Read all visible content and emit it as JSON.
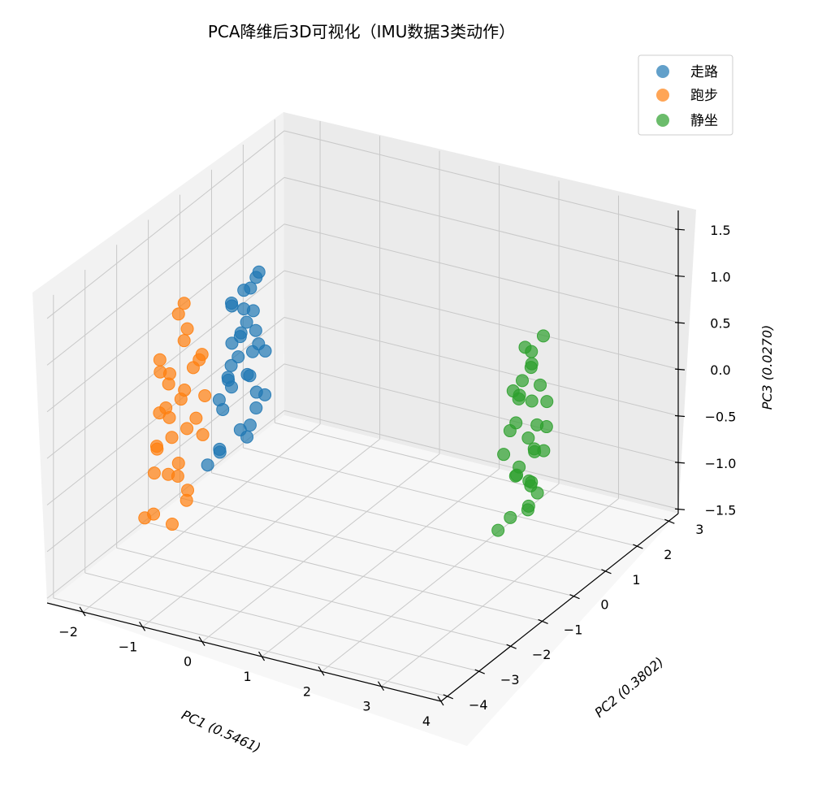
{
  "chart_data": {
    "type": "scatter",
    "projection": "3d",
    "title": "PCA降维后3D可视化（IMU数据3类动作）",
    "xlabel": "PC1 (0.5461)",
    "ylabel": "PC2 (0.3802)",
    "zlabel": "PC3 (0.0270)",
    "x_ticks": [
      "−2",
      "−1",
      "0",
      "1",
      "2",
      "3",
      "4"
    ],
    "y_ticks": [
      "−4",
      "−3",
      "−2",
      "−1",
      "0",
      "1",
      "2",
      "3"
    ],
    "z_ticks": [
      "−1.5",
      "−1.0",
      "−0.5",
      "0.0",
      "0.5",
      "1.0",
      "1.5"
    ],
    "xlim": [
      -2.6,
      4.0
    ],
    "ylim": [
      -4.2,
      3.3
    ],
    "zlim": [
      -1.55,
      1.7
    ],
    "grid": true,
    "legend_position": "top-right",
    "marker_size": "large",
    "alpha": 0.7,
    "series": [
      {
        "name": "走路",
        "color": "#1f77b4",
        "points": [
          [
            -1.0,
            -1.0,
            1.2
          ],
          [
            -0.9,
            -0.8,
            1.3
          ],
          [
            -1.1,
            -1.2,
            1.1
          ],
          [
            -0.8,
            -0.9,
            1.4
          ],
          [
            -1.2,
            -1.0,
            1.0
          ],
          [
            -1.0,
            -0.7,
            0.9
          ],
          [
            -0.9,
            -1.3,
            0.8
          ],
          [
            -1.1,
            -0.9,
            0.7
          ],
          [
            -0.8,
            -1.1,
            0.6
          ],
          [
            -1.0,
            -1.4,
            0.5
          ],
          [
            -1.2,
            -0.8,
            0.4
          ],
          [
            -0.9,
            -1.0,
            0.3
          ],
          [
            -1.1,
            -1.2,
            0.2
          ],
          [
            -0.7,
            -0.9,
            0.1
          ],
          [
            -1.0,
            -0.6,
            0.0
          ],
          [
            -1.3,
            -1.1,
            -0.1
          ],
          [
            -0.9,
            -1.3,
            -0.2
          ],
          [
            -1.0,
            -0.8,
            -0.3
          ],
          [
            -1.2,
            -1.0,
            0.6
          ],
          [
            -0.8,
            -0.7,
            0.5
          ],
          [
            -1.1,
            -1.3,
            0.3
          ],
          [
            -0.9,
            -1.1,
            0.9
          ],
          [
            -1.0,
            -0.9,
            -0.4
          ],
          [
            -1.3,
            -1.2,
            -0.5
          ],
          [
            -0.8,
            -1.0,
            0.8
          ],
          [
            -1.1,
            -0.7,
            0.2
          ],
          [
            -1.0,
            -1.5,
            0.4
          ],
          [
            -0.9,
            -0.8,
            -0.1
          ],
          [
            -1.2,
            -1.4,
            0.1
          ],
          [
            -1.4,
            -1.0,
            -0.6
          ],
          [
            -1.5,
            -1.2,
            -0.7
          ],
          [
            -0.7,
            -1.1,
            0.7
          ],
          [
            -1.0,
            -1.0,
            1.0
          ],
          [
            -1.1,
            -0.6,
            1.1
          ]
        ]
      },
      {
        "name": "跑步",
        "color": "#ff7f0e",
        "points": [
          [
            -2.2,
            -0.8,
            0.7
          ],
          [
            -2.0,
            -1.0,
            0.5
          ],
          [
            -2.3,
            -1.2,
            0.3
          ],
          [
            -1.9,
            -0.9,
            0.2
          ],
          [
            -2.1,
            -1.3,
            0.1
          ],
          [
            -2.4,
            -0.7,
            0.0
          ],
          [
            -2.0,
            -1.1,
            -0.1
          ],
          [
            -2.2,
            -1.4,
            -0.2
          ],
          [
            -1.8,
            -1.0,
            -0.3
          ],
          [
            -2.3,
            -0.9,
            -0.4
          ],
          [
            -2.1,
            -1.2,
            -0.5
          ],
          [
            -1.9,
            -0.6,
            -0.6
          ],
          [
            -2.4,
            -1.1,
            -0.7
          ],
          [
            -2.0,
            -1.5,
            -0.8
          ],
          [
            -2.2,
            -0.8,
            -0.9
          ],
          [
            -2.5,
            -1.0,
            -1.0
          ],
          [
            -1.8,
            -1.3,
            -1.1
          ],
          [
            -2.1,
            -0.7,
            -1.2
          ],
          [
            -2.3,
            -1.4,
            -1.3
          ],
          [
            -1.7,
            -1.0,
            0.4
          ],
          [
            -2.0,
            -0.9,
            0.6
          ],
          [
            -2.2,
            -1.2,
            -0.2
          ],
          [
            -2.4,
            -1.0,
            0.1
          ],
          [
            -1.9,
            -1.1,
            -0.4
          ],
          [
            -2.1,
            -0.8,
            -0.1
          ],
          [
            -2.3,
            -1.3,
            -0.6
          ],
          [
            -2.0,
            -1.2,
            -0.9
          ],
          [
            -1.8,
            -0.9,
            0.3
          ],
          [
            -2.5,
            -1.3,
            -1.4
          ],
          [
            -2.2,
            -1.0,
            -1.5
          ],
          [
            -1.6,
            -1.1,
            0.0
          ],
          [
            -2.0,
            -1.0,
            0.9
          ]
        ]
      },
      {
        "name": "静坐",
        "color": "#2ca02c",
        "points": [
          [
            2.6,
            1.3,
            0.5
          ],
          [
            2.7,
            1.1,
            0.4
          ],
          [
            2.5,
            1.5,
            0.3
          ],
          [
            2.8,
            1.2,
            0.2
          ],
          [
            2.6,
            0.9,
            0.1
          ],
          [
            2.4,
            1.3,
            0.0
          ],
          [
            2.7,
            1.6,
            -0.1
          ],
          [
            2.5,
            1.0,
            -0.2
          ],
          [
            2.8,
            1.4,
            -0.3
          ],
          [
            2.6,
            1.2,
            -0.4
          ],
          [
            2.4,
            0.8,
            -0.5
          ],
          [
            2.7,
            1.5,
            -0.6
          ],
          [
            2.5,
            1.1,
            -0.7
          ],
          [
            2.8,
            0.9,
            -0.8
          ],
          [
            2.6,
            1.3,
            -0.9
          ],
          [
            2.4,
            1.6,
            -1.0
          ],
          [
            2.7,
            1.0,
            -1.1
          ],
          [
            2.5,
            1.4,
            -1.2
          ],
          [
            2.3,
            1.2,
            -1.3
          ],
          [
            2.6,
            1.1,
            0.6
          ],
          [
            2.8,
            1.3,
            0.7
          ],
          [
            2.4,
            1.0,
            -0.3
          ],
          [
            2.7,
            1.2,
            -0.5
          ],
          [
            2.5,
            1.5,
            -0.1
          ],
          [
            2.6,
            0.8,
            -0.7
          ],
          [
            2.3,
            1.4,
            -0.9
          ],
          [
            2.7,
            1.3,
            -1.0
          ],
          [
            2.5,
            1.2,
            0.2
          ],
          [
            2.8,
            1.1,
            -0.2
          ],
          [
            2.2,
            1.0,
            -1.4
          ],
          [
            2.6,
            1.4,
            -0.6
          ],
          [
            2.4,
            1.1,
            0.1
          ]
        ]
      }
    ]
  }
}
